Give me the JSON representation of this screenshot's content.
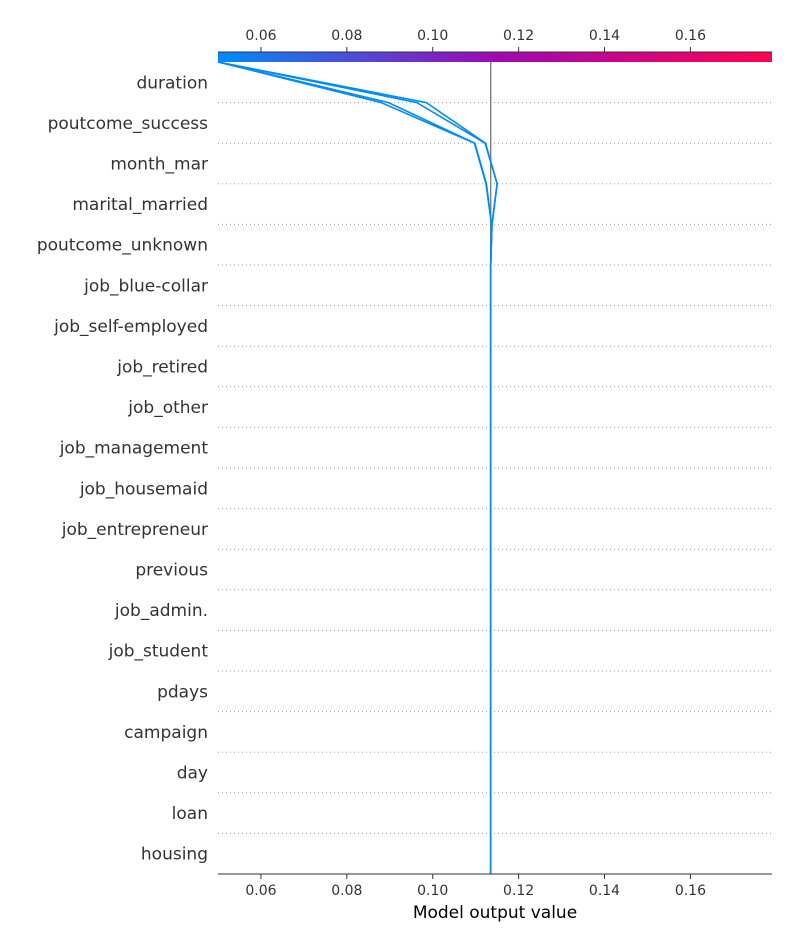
{
  "chart_data": {
    "type": "line",
    "title": "",
    "xlabel": "Model output value",
    "ylabel": "",
    "xlim": [
      0.05,
      0.179
    ],
    "x_ticks": [
      0.06,
      0.08,
      0.1,
      0.12,
      0.14,
      0.16
    ],
    "x_tick_labels": [
      "0.06",
      "0.08",
      "0.10",
      "0.12",
      "0.14",
      "0.16"
    ],
    "top_ticks": [
      0.06,
      0.08,
      0.1,
      0.12,
      0.14,
      0.16
    ],
    "top_tick_labels": [
      "0.06",
      "0.08",
      "0.10",
      "0.12",
      "0.14",
      "0.16"
    ],
    "base_value": 0.1135,
    "features": [
      "duration",
      "poutcome_success",
      "month_mar",
      "marital_married",
      "poutcome_unknown",
      "job_blue-collar",
      "job_self-employed",
      "job_retired",
      "job_other",
      "job_management",
      "job_housemaid",
      "job_entrepreneur",
      "previous",
      "job_admin.",
      "job_student",
      "pdays",
      "campaign",
      "day",
      "loan",
      "housing"
    ],
    "colorbar": {
      "min": 0.05,
      "max": 0.179,
      "low_color": "#008bfb",
      "mid_color": "#9f08b5",
      "high_color": "#ff0052"
    },
    "grid": true,
    "series": [
      {
        "values": [
          0.1135,
          0.1135,
          0.1135,
          0.1135,
          0.1135,
          0.1135,
          0.1135,
          0.1135,
          0.1135,
          0.1135,
          0.1135,
          0.1135,
          0.1135,
          0.1135,
          0.1135,
          0.1135,
          0.1138,
          0.115,
          0.1123,
          0.0985,
          0.05
        ],
        "color": "#008bfb"
      },
      {
        "values": [
          0.1135,
          0.1135,
          0.1135,
          0.1135,
          0.1135,
          0.1135,
          0.1135,
          0.1135,
          0.1135,
          0.1135,
          0.1135,
          0.1135,
          0.1135,
          0.1135,
          0.1135,
          0.1135,
          0.1138,
          0.115,
          0.1122,
          0.0963,
          0.05
        ],
        "color": "#008bfb"
      },
      {
        "values": [
          0.1135,
          0.1135,
          0.1135,
          0.1135,
          0.1135,
          0.1135,
          0.1135,
          0.1135,
          0.1135,
          0.1135,
          0.1135,
          0.1135,
          0.1135,
          0.1135,
          0.1135,
          0.1135,
          0.1137,
          0.1125,
          0.1098,
          0.0897,
          0.05
        ],
        "color": "#008bfb"
      },
      {
        "values": [
          0.1135,
          0.1135,
          0.1135,
          0.1135,
          0.1135,
          0.1135,
          0.1135,
          0.1135,
          0.1135,
          0.1135,
          0.1135,
          0.1135,
          0.1135,
          0.1135,
          0.1135,
          0.1135,
          0.1137,
          0.1124,
          0.1097,
          0.088,
          0.05
        ],
        "color": "#008bfb"
      }
    ]
  }
}
